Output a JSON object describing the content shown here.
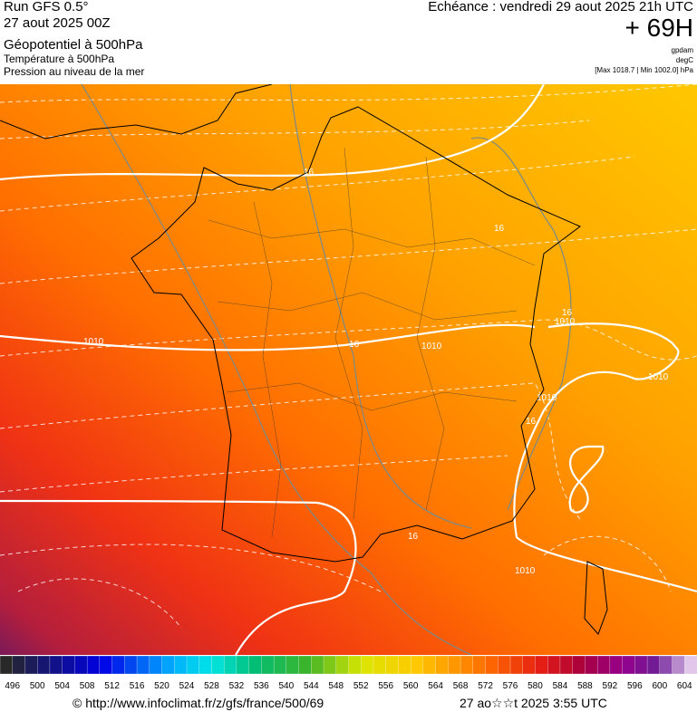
{
  "header": {
    "title": "Run GFS 0.5°",
    "run": "27 aout 2025 00Z",
    "fields": [
      "Géopotentiel à 500hPa",
      "Température à 500hPa",
      "Pression au niveau de la mer"
    ],
    "valid_time": "Echéance : vendredi 29 aout 2025 21h UTC",
    "lead": "+ 69H",
    "units": [
      "gpdam",
      "degC",
      "[Max 1018.7 | Min 1002.0] hPa"
    ]
  },
  "map": {
    "contour_labels": [
      "1010",
      "1010",
      "1010",
      "1010",
      "1010",
      "1010",
      "16",
      "16",
      "16",
      "16",
      "16",
      "16"
    ]
  },
  "colorbar": {
    "labels": [
      496,
      500,
      504,
      508,
      512,
      516,
      520,
      524,
      528,
      532,
      536,
      540,
      544,
      548,
      552,
      556,
      560,
      564,
      568,
      572,
      576,
      580,
      584,
      588,
      592,
      596,
      600,
      604
    ]
  },
  "footer": {
    "source": "© http://www.infoclimat.fr/z/gfs/france/500/69",
    "date": "27 ao☆☆t 2025  3:55 UTC"
  }
}
